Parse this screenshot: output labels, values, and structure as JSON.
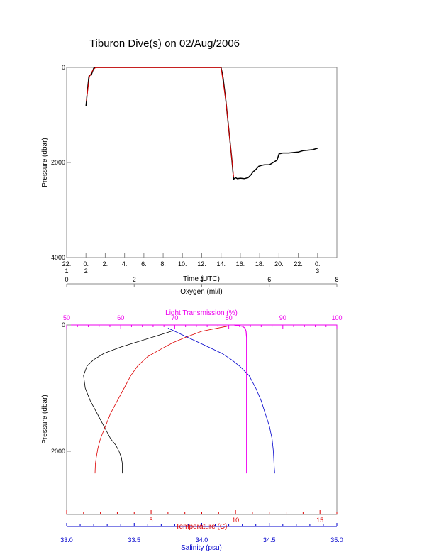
{
  "page": {
    "title": "Tiburon Dive(s) on 02/Aug/2006"
  },
  "colors": {
    "black": "#000000",
    "red": "#dd0000",
    "blue": "#0000cc",
    "magenta": "#ee00ee"
  },
  "chart_data": [
    {
      "type": "line",
      "title": "Tiburon Dive(s) on 02/Aug/2006",
      "xlabel": "Time (UTC)",
      "ylabel": "Pressure (dbar)",
      "xlim": [
        -2,
        26
      ],
      "ylim": [
        4000,
        0
      ],
      "y_reversed": true,
      "grid": false,
      "x_ticks": [
        {
          "v": -2,
          "l1": "22:",
          "l2": "1"
        },
        {
          "v": 0,
          "l1": "0:",
          "l2": "2"
        },
        {
          "v": 2,
          "l1": "2:",
          "l2": ""
        },
        {
          "v": 4,
          "l1": "4:",
          "l2": ""
        },
        {
          "v": 6,
          "l1": "6:",
          "l2": ""
        },
        {
          "v": 8,
          "l1": "8:",
          "l2": ""
        },
        {
          "v": 10,
          "l1": "10:",
          "l2": ""
        },
        {
          "v": 12,
          "l1": "12:",
          "l2": ""
        },
        {
          "v": 14,
          "l1": "14:",
          "l2": ""
        },
        {
          "v": 16,
          "l1": "16:",
          "l2": ""
        },
        {
          "v": 18,
          "l1": "18:",
          "l2": ""
        },
        {
          "v": 20,
          "l1": "20:",
          "l2": ""
        },
        {
          "v": 22,
          "l1": "22:",
          "l2": ""
        },
        {
          "v": 24,
          "l1": "0:",
          "l2": "3"
        }
      ],
      "y_ticks": [
        {
          "v": 0,
          "label": "0"
        },
        {
          "v": 2000,
          "label": "2000"
        },
        {
          "v": 4000,
          "label": "4000"
        }
      ],
      "series": [
        {
          "color": "#000000",
          "x": [
            0.0,
            0.1,
            0.2,
            0.3,
            0.35,
            0.55,
            0.65,
            0.8,
            1.0,
            14.0,
            14.2,
            14.5,
            14.8,
            15.1,
            15.3,
            15.5,
            15.7,
            16.0,
            16.4,
            16.8,
            17.1,
            17.3,
            17.6,
            17.9,
            18.2,
            18.5,
            19.0,
            19.4,
            19.8,
            20.0,
            20.4,
            21.0,
            21.5,
            22.0,
            22.5,
            23.0,
            23.5,
            24.0
          ],
          "y": [
            820,
            600,
            400,
            200,
            160,
            160,
            100,
            20,
            0,
            0,
            200,
            700,
            1300,
            1900,
            2350,
            2320,
            2340,
            2330,
            2340,
            2320,
            2260,
            2200,
            2150,
            2080,
            2060,
            2050,
            2050,
            2000,
            1950,
            1820,
            1800,
            1800,
            1790,
            1780,
            1750,
            1740,
            1730,
            1700
          ]
        },
        {
          "color": "#dd0000",
          "x": [
            0.05,
            0.35,
            0.7,
            1.0,
            14.0,
            14.5,
            15.0,
            15.3
          ],
          "y": [
            700,
            200,
            60,
            5,
            5,
            700,
            1700,
            2300
          ]
        }
      ]
    },
    {
      "type": "line",
      "ylabel": "Pressure (dbar)",
      "ylim": [
        3000,
        0
      ],
      "y_reversed": true,
      "y_ticks": [
        {
          "v": 0,
          "label": "0"
        },
        {
          "v": 2000,
          "label": "2000"
        }
      ],
      "axes": {
        "oxygen": {
          "label": "Oxygen (ml/l)",
          "color": "#000000",
          "position": "top",
          "lim": [
            0,
            8
          ],
          "ticks": [
            {
              "v": 0,
              "label": "0"
            },
            {
              "v": 2,
              "label": "2"
            },
            {
              "v": 4,
              "label": "4"
            },
            {
              "v": 6,
              "label": "6"
            },
            {
              "v": 8,
              "label": "8"
            }
          ]
        },
        "light": {
          "label": "Light Transmission (%)",
          "color": "#ee00ee",
          "position": "top-inner",
          "lim": [
            50,
            100
          ],
          "ticks": [
            {
              "v": 50,
              "label": "50"
            },
            {
              "v": 60,
              "label": "60"
            },
            {
              "v": 70,
              "label": "70"
            },
            {
              "v": 80,
              "label": "80"
            },
            {
              "v": 90,
              "label": "90"
            },
            {
              "v": 100,
              "label": "100"
            }
          ]
        },
        "temperature": {
          "label": "Temperature (C)",
          "color": "#dd0000",
          "position": "bottom",
          "lim": [
            0,
            16
          ],
          "ticks": [
            {
              "v": 5,
              "label": "5"
            },
            {
              "v": 10,
              "label": "10"
            },
            {
              "v": 15,
              "label": "15"
            }
          ]
        },
        "salinity": {
          "label": "Salinity (psu)",
          "color": "#0000cc",
          "position": "bottom-outer",
          "lim": [
            33.0,
            35.0
          ],
          "ticks": [
            {
              "v": 33.0,
              "label": "33.0"
            },
            {
              "v": 33.5,
              "label": "33.5"
            },
            {
              "v": 34.0,
              "label": "34.0"
            },
            {
              "v": 34.5,
              "label": "34.5"
            },
            {
              "v": 35.0,
              "label": "35.0"
            }
          ]
        }
      },
      "series": [
        {
          "axis": "oxygen",
          "color": "#000000",
          "x": [
            3.1,
            2.8,
            2.2,
            1.6,
            1.1,
            0.8,
            0.6,
            0.5,
            0.55,
            0.7,
            0.9,
            1.1,
            1.3,
            1.45,
            1.55,
            1.62,
            1.65,
            1.65
          ],
          "y": [
            100,
            150,
            250,
            350,
            450,
            550,
            650,
            800,
            1000,
            1200,
            1400,
            1600,
            1800,
            1900,
            2000,
            2100,
            2200,
            2350
          ]
        },
        {
          "axis": "temperature",
          "color": "#dd0000",
          "x": [
            9.5,
            8.0,
            7.0,
            6.3,
            5.6,
            4.8,
            4.2,
            3.8,
            3.4,
            3.0,
            2.6,
            2.3,
            2.0,
            1.85,
            1.75,
            1.7,
            1.68
          ],
          "y": [
            20,
            100,
            200,
            280,
            380,
            500,
            650,
            800,
            1000,
            1200,
            1400,
            1600,
            1800,
            1950,
            2100,
            2200,
            2350
          ]
        },
        {
          "axis": "salinity",
          "color": "#0000cc",
          "x": [
            33.75,
            33.85,
            33.95,
            34.05,
            34.15,
            34.22,
            34.28,
            34.35,
            34.4,
            34.44,
            34.47,
            34.5,
            34.52,
            34.53,
            34.535,
            34.54
          ],
          "y": [
            50,
            150,
            250,
            350,
            450,
            550,
            650,
            800,
            1000,
            1200,
            1400,
            1600,
            1800,
            2000,
            2200,
            2350
          ]
        },
        {
          "axis": "light",
          "color": "#ee00ee",
          "x": [
            81.0,
            82.5,
            83.0,
            83.2,
            83.3,
            83.3,
            83.3,
            83.3,
            83.3
          ],
          "y": [
            0,
            20,
            50,
            100,
            200,
            500,
            1000,
            2000,
            2350
          ]
        }
      ]
    }
  ]
}
